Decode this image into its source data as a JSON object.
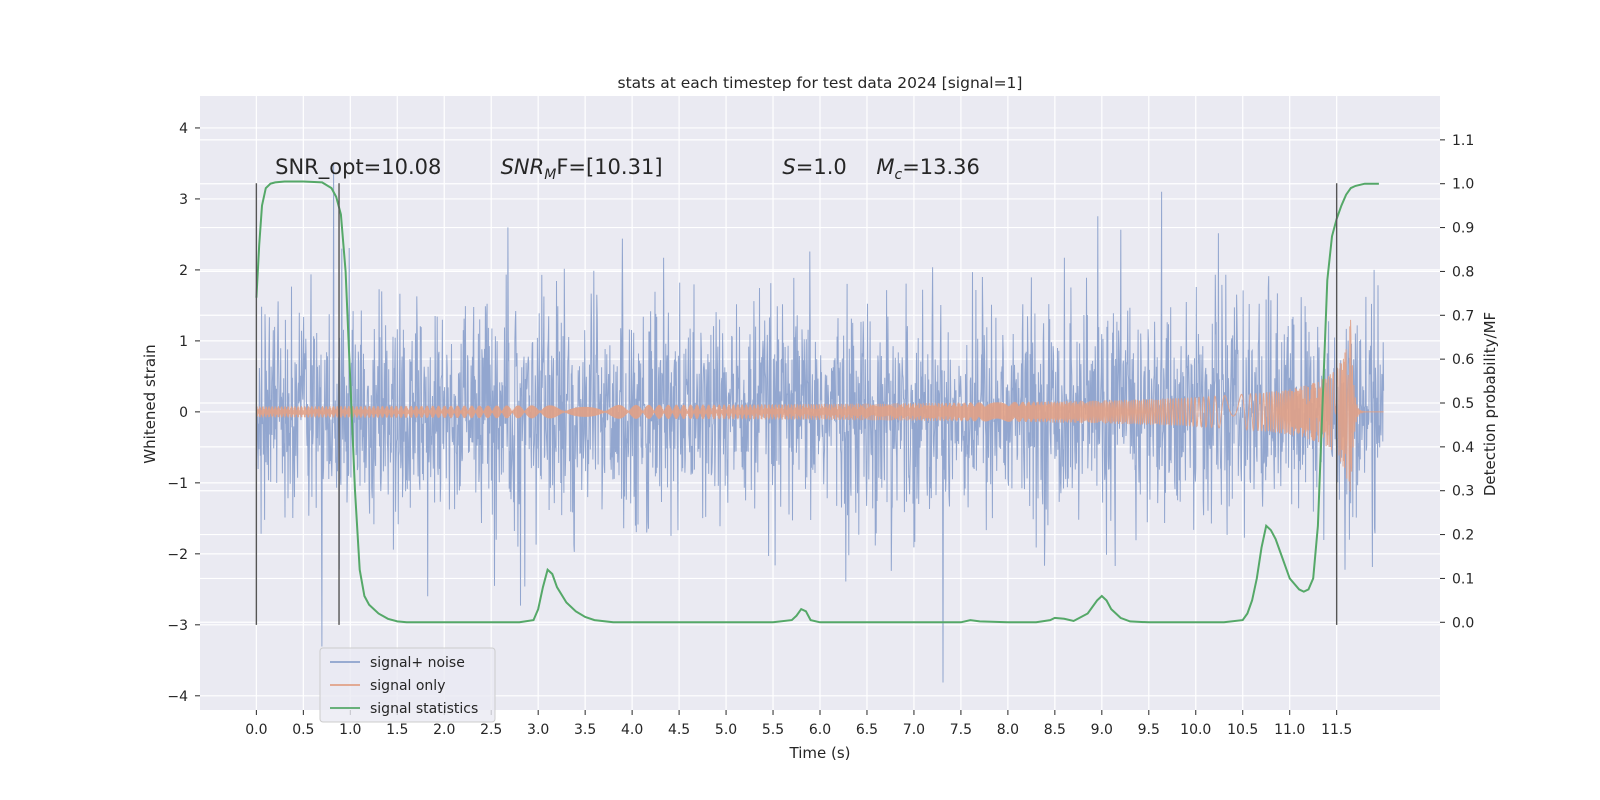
{
  "chart_data": {
    "type": "line",
    "title": "stats at each timestep for test data 2024 [signal=1]",
    "xlabel": "Time (s)",
    "ylabel": "Whitened strain",
    "y2label": "Detection probability/MF",
    "xlim": [
      -0.6,
      12.6
    ],
    "ylim": [
      -4.2,
      4.45
    ],
    "y2lim": [
      -0.2,
      1.2
    ],
    "grid": true,
    "legend_position": "lower-left",
    "x_ticks": [
      "0.0",
      "0.5",
      "1.0",
      "1.5",
      "2.0",
      "2.5",
      "3.0",
      "3.5",
      "4.0",
      "4.5",
      "5.0",
      "5.5",
      "6.0",
      "6.5",
      "7.0",
      "7.5",
      "8.0",
      "8.5",
      "9.0",
      "9.5",
      "10.0",
      "10.5",
      "11.0",
      "11.5"
    ],
    "y_ticks": [
      "4",
      "3",
      "2",
      "1",
      "0",
      "−1",
      "−2",
      "−3",
      "−4"
    ],
    "y2_ticks": [
      "1.1",
      "1.0",
      "0.9",
      "0.8",
      "0.7",
      "0.6",
      "0.5",
      "0.4",
      "0.3",
      "0.2",
      "0.1",
      "0.0"
    ],
    "annotations": [
      {
        "text": "SNR_opt=10.08",
        "x": 0.2,
        "y": 3.35
      },
      {
        "text": "SNR",
        "sub": "M",
        "rest": "F=[10.31]",
        "italic": true,
        "x": 2.6,
        "y": 3.35
      },
      {
        "text": "S",
        "rest": "=1.0",
        "italic": true,
        "x": 5.6,
        "y": 3.35
      },
      {
        "text": "M",
        "sub": "c",
        "rest": "=13.36",
        "italic": true,
        "x": 6.6,
        "y": 3.35
      }
    ],
    "vertical_markers": [
      {
        "x": 0.0,
        "y_from": -3.0,
        "y_to": 3.22
      },
      {
        "x": 0.88,
        "y_from": -3.0,
        "y_to": 3.22
      },
      {
        "x": 11.5,
        "y_from": -3.0,
        "y_to": 3.22
      }
    ],
    "series": [
      {
        "name": "signal+ noise",
        "color": "#8da2cc",
        "description": "dense whitened noise trace spanning 0 to 12 s, amplitude mostly within ±2, peaks near ±3.5",
        "x_range": [
          0.0,
          12.0
        ],
        "envelope_typical": 2.2,
        "envelope_max": 4.1
      },
      {
        "name": "signal only",
        "color": "#e1a186",
        "description": "chirp signal, near zero until ~7.5 s, growing amplitude to peak ~±1.5 at ~11.65 s, then ringdown",
        "x_range": [
          0.0,
          12.0
        ],
        "peak_time": 11.65,
        "peak_amplitude": 1.5
      },
      {
        "name": "signal statistics",
        "color": "#55a868",
        "axis": "right",
        "x": [
          0.0,
          0.03,
          0.06,
          0.1,
          0.15,
          0.2,
          0.3,
          0.5,
          0.7,
          0.8,
          0.85,
          0.9,
          0.95,
          1.0,
          1.05,
          1.1,
          1.15,
          1.2,
          1.3,
          1.4,
          1.5,
          1.6,
          1.7,
          1.8,
          2.0,
          2.5,
          2.8,
          2.95,
          3.0,
          3.05,
          3.1,
          3.15,
          3.2,
          3.3,
          3.4,
          3.5,
          3.6,
          3.8,
          4.0,
          4.5,
          5.0,
          5.5,
          5.7,
          5.75,
          5.8,
          5.85,
          5.9,
          6.0,
          6.5,
          7.0,
          7.5,
          7.6,
          7.7,
          8.0,
          8.3,
          8.45,
          8.5,
          8.6,
          8.7,
          8.85,
          8.95,
          9.0,
          9.05,
          9.1,
          9.2,
          9.3,
          9.5,
          10.0,
          10.3,
          10.5,
          10.55,
          10.6,
          10.65,
          10.7,
          10.75,
          10.8,
          10.85,
          10.9,
          11.0,
          11.1,
          11.15,
          11.2,
          11.25,
          11.3,
          11.35,
          11.4,
          11.45,
          11.5,
          11.55,
          11.6,
          11.65,
          11.7,
          11.8,
          11.9,
          11.95
        ],
        "y": [
          0.74,
          0.86,
          0.95,
          0.99,
          1.0,
          1.003,
          1.005,
          1.005,
          1.003,
          0.99,
          0.97,
          0.93,
          0.8,
          0.55,
          0.3,
          0.12,
          0.06,
          0.04,
          0.02,
          0.008,
          0.002,
          0.0,
          0.0,
          0.0,
          0.0,
          0.0,
          0.0,
          0.005,
          0.03,
          0.08,
          0.12,
          0.11,
          0.08,
          0.045,
          0.025,
          0.012,
          0.005,
          0.0,
          0.0,
          0.0,
          0.0,
          0.0,
          0.005,
          0.015,
          0.03,
          0.025,
          0.005,
          0.0,
          0.0,
          0.0,
          0.0,
          0.005,
          0.002,
          0.0,
          0.0,
          0.005,
          0.01,
          0.008,
          0.003,
          0.02,
          0.05,
          0.06,
          0.05,
          0.03,
          0.01,
          0.002,
          0.0,
          0.0,
          0.0,
          0.005,
          0.02,
          0.05,
          0.1,
          0.17,
          0.22,
          0.21,
          0.19,
          0.16,
          0.1,
          0.075,
          0.07,
          0.075,
          0.1,
          0.22,
          0.5,
          0.78,
          0.88,
          0.92,
          0.95,
          0.975,
          0.99,
          0.995,
          1.0,
          1.0,
          1.0
        ]
      }
    ]
  }
}
